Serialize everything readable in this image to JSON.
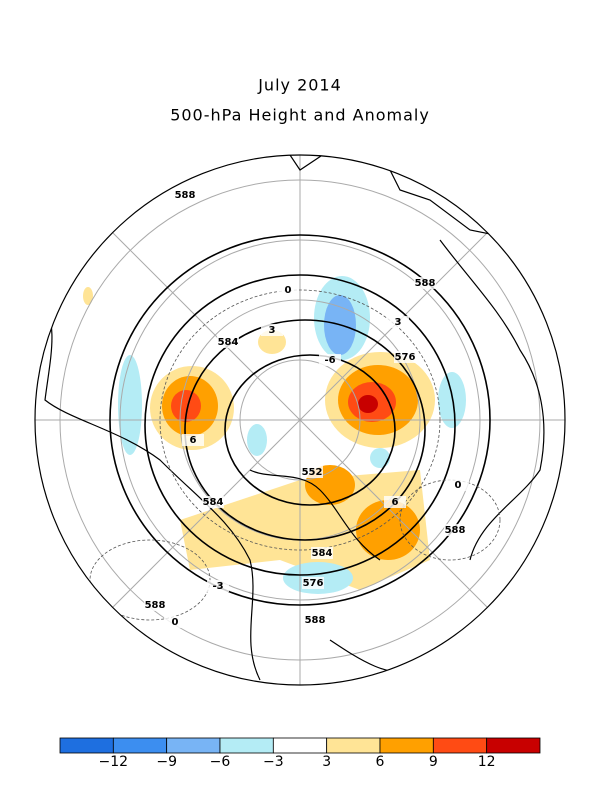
{
  "header": {
    "title": "July 2014",
    "subtitle": "500-hPa Height and Anomaly"
  },
  "colorbar": {
    "colors": [
      "#1e6fe0",
      "#3c8ef0",
      "#78b4f5",
      "#b4ecf5",
      "#ffffff",
      "#ffe496",
      "#ffa000",
      "#ff4b14",
      "#c80000"
    ],
    "labels": [
      "−12",
      "−9",
      "−6",
      "−3",
      "3",
      "6",
      "9",
      "12"
    ]
  },
  "contour_labels": [
    "588",
    "588",
    "588",
    "588",
    "588",
    "584",
    "584",
    "584",
    "576",
    "576",
    "552",
    "3",
    "3",
    "-3",
    "6",
    "6",
    "-6",
    "0",
    "0",
    "0"
  ]
}
